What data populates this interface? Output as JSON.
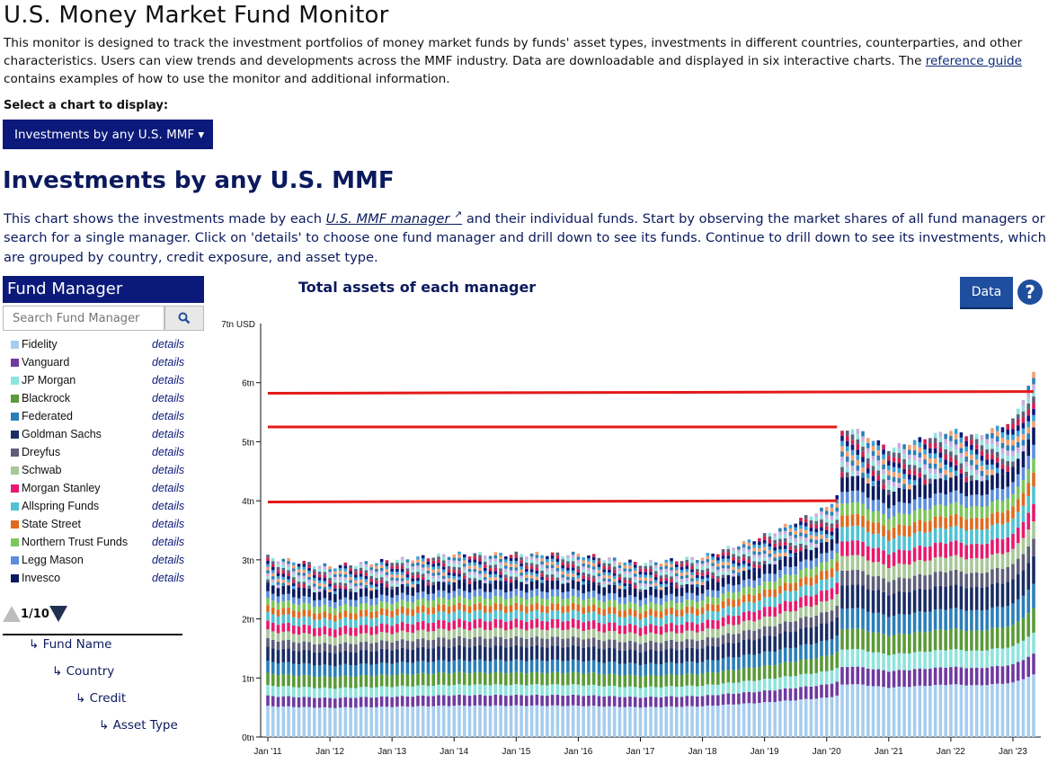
{
  "page": {
    "title": "U.S. Money Market Fund Monitor",
    "intro_text": "This monitor is designed to track the investment portfolios of money market funds by funds' asset types, investments in different countries, counterparties, and other characteristics. Users can view trends and developments across the MMF industry. Data are downloadable and displayed in six interactive charts. The ",
    "intro_link": "reference guide",
    "intro_tail": " contains examples of how to use the monitor and additional information.",
    "select_label": "Select a chart to display:",
    "chart_dropdown": "Investments by any U.S. MMF ▾"
  },
  "section": {
    "title": "Investments by any U.S. MMF",
    "desc_pre": "This chart shows the investments made by each ",
    "desc_link": "U.S. MMF manager ",
    "desc_post": " and their individual funds. Start by observing the market shares of all fund managers or search for a single manager. Click on 'details' to choose one fund manager and drill down to see its funds. Continue to drill down to see its investments, which are grouped by country, credit exposure, and asset type."
  },
  "sidebar": {
    "header": "Fund Manager",
    "search_placeholder": "Search Fund Manager",
    "details_label": "details",
    "managers": [
      {
        "name": "Fidelity",
        "color": "#a6cdee"
      },
      {
        "name": "Vanguard",
        "color": "#6f3aa0"
      },
      {
        "name": "JP Morgan",
        "color": "#8fe3dd"
      },
      {
        "name": "Blackrock",
        "color": "#5a9a38"
      },
      {
        "name": "Federated",
        "color": "#2a7fb8"
      },
      {
        "name": "Goldman Sachs",
        "color": "#1a2d64"
      },
      {
        "name": "Dreyfus",
        "color": "#5e5e7a"
      },
      {
        "name": "Schwab",
        "color": "#a8c898"
      },
      {
        "name": "Morgan Stanley",
        "color": "#e8196e"
      },
      {
        "name": "Allspring Funds",
        "color": "#4fc3d3"
      },
      {
        "name": "State Street",
        "color": "#e06a1e"
      },
      {
        "name": "Northern Trust Funds",
        "color": "#7dc75a"
      },
      {
        "name": "Legg Mason",
        "color": "#5b8edc"
      },
      {
        "name": "Invesco",
        "color": "#0b1a5e"
      }
    ],
    "pager": "1/10",
    "hierarchy": [
      "↳ Fund Name",
      "↳ Country",
      "↳ Credit",
      "↳ Asset Type"
    ]
  },
  "chart_header": {
    "title": "Total assets of each manager",
    "data_button": "Data",
    "help": "?"
  },
  "chart_data": {
    "type": "bar",
    "stacked": true,
    "title": "Total assets of each manager",
    "ylabel": "7tn USD",
    "ylim": [
      0,
      7
    ],
    "y_ticks": [
      "0tn",
      "1tn",
      "2tn",
      "3tn",
      "4tn",
      "5tn",
      "6tn"
    ],
    "x_ticks": [
      "Jan '11",
      "Jan '12",
      "Jan '13",
      "Jan '14",
      "Jan '15",
      "Jan '16",
      "Jan '17",
      "Jan '18",
      "Jan '19",
      "Jan '20",
      "Jan '21",
      "Jan '22",
      "Jan '23"
    ],
    "total_anchors": [
      [
        "2011-01",
        2.9
      ],
      [
        "2012-01",
        2.75
      ],
      [
        "2013-01",
        2.85
      ],
      [
        "2014-01",
        2.95
      ],
      [
        "2015-01",
        2.95
      ],
      [
        "2016-01",
        2.95
      ],
      [
        "2017-01",
        2.8
      ],
      [
        "2018-01",
        2.9
      ],
      [
        "2019-01",
        3.25
      ],
      [
        "2020-01",
        3.7
      ],
      [
        "2020-03",
        3.9
      ],
      [
        "2020-04",
        4.9
      ],
      [
        "2020-06",
        5.0
      ],
      [
        "2021-01",
        4.65
      ],
      [
        "2022-01",
        4.95
      ],
      [
        "2022-06",
        4.85
      ],
      [
        "2023-01",
        5.1
      ],
      [
        "2023-05",
        5.85
      ]
    ],
    "first_month": "2011-01",
    "last_month": "2023-05",
    "series_shares": [
      0.18,
      0.06,
      0.06,
      0.07,
      0.07,
      0.08,
      0.05,
      0.05,
      0.05,
      0.05,
      0.04,
      0.04,
      0.04,
      0.05,
      0.16
    ],
    "other_color_cycle": [
      "#f4a070",
      "#3aa0d8",
      "#0b1a7a",
      "#d02050",
      "#5e5e7a",
      "#8fe3dd",
      "#c8b0e0",
      "#2a7fb8"
    ],
    "reference_lines": [
      {
        "y": 5.82,
        "to_y": 5.85,
        "from": "2011-01",
        "to": "2023-05",
        "color": "#e41a1a"
      },
      {
        "y": 5.25,
        "from": "2011-01",
        "to": "2020-03",
        "color": "#e41a1a"
      },
      {
        "y": 3.98,
        "to_y": 4.0,
        "from": "2011-01",
        "to": "2020-03",
        "color": "#e41a1a"
      }
    ]
  }
}
